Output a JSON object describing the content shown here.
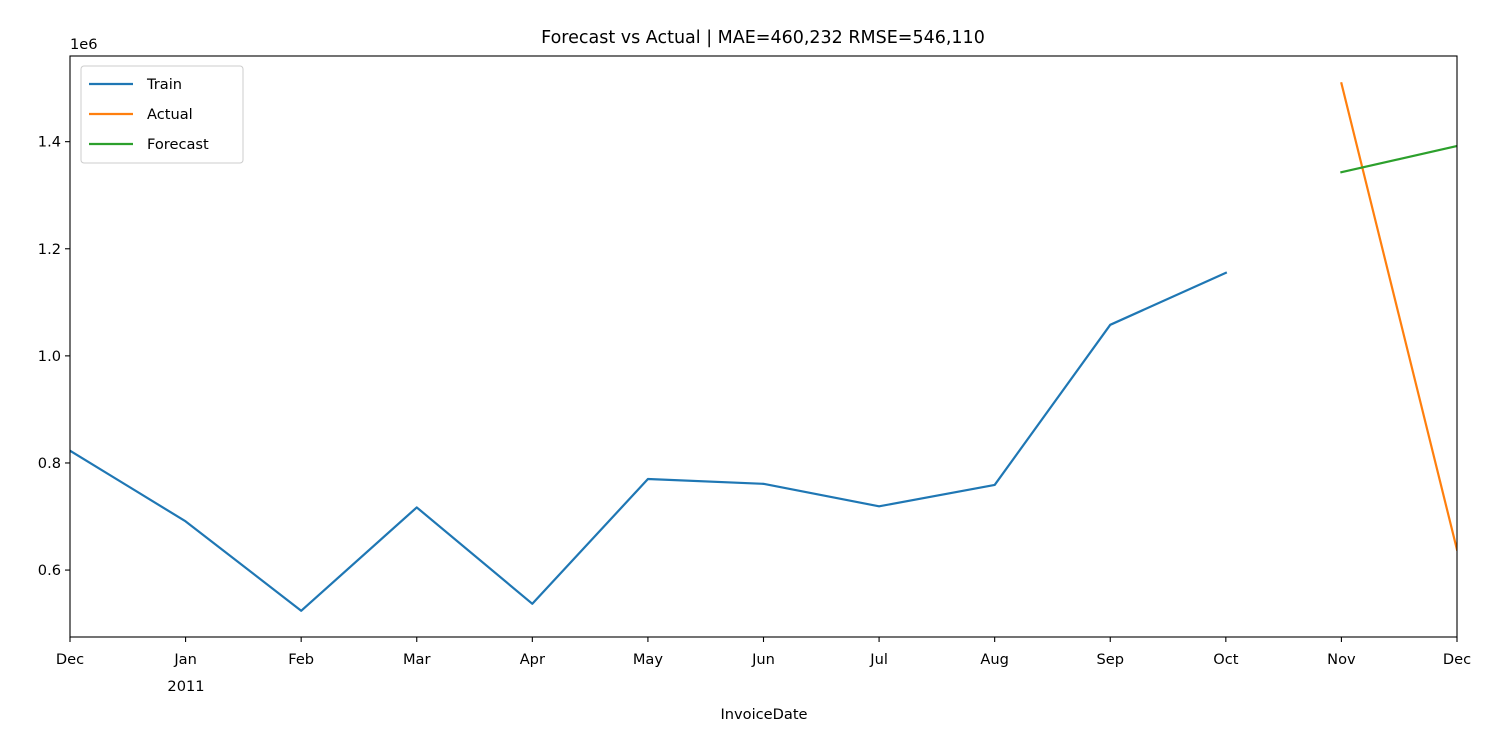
{
  "chart_data": {
    "type": "line",
    "title": "Forecast vs Actual | MAE=460,232 RMSE=546,110",
    "xlabel": "InvoiceDate",
    "ylabel": "",
    "y_offset_label": "1e6",
    "x_categories": [
      "2010-12",
      "2011-01",
      "2011-02",
      "2011-03",
      "2011-04",
      "2011-05",
      "2011-06",
      "2011-07",
      "2011-08",
      "2011-09",
      "2011-10",
      "2011-11",
      "2011-12"
    ],
    "x_tick_labels": [
      "Dec",
      "Jan",
      "Feb",
      "Mar",
      "Apr",
      "May",
      "Jun",
      "Jul",
      "Aug",
      "Sep",
      "Oct",
      "Nov",
      "Dec"
    ],
    "x_year_label": "2011",
    "ylim": [
      0.475,
      1.56
    ],
    "y_ticks": [
      0.6,
      0.8,
      1.0,
      1.2,
      1.4
    ],
    "y_tick_labels": [
      "0.6",
      "0.8",
      "1.0",
      "1.2",
      "1.4"
    ],
    "legend_position": "upper-left",
    "grid": false,
    "series": [
      {
        "name": "Train",
        "color": "#1f77b4",
        "x": [
          "2010-12",
          "2011-01",
          "2011-02",
          "2011-03",
          "2011-04",
          "2011-05",
          "2011-06",
          "2011-07",
          "2011-08",
          "2011-09",
          "2011-10"
        ],
        "values": [
          0.823,
          0.691,
          0.524,
          0.717,
          0.537,
          0.77,
          0.761,
          0.719,
          0.759,
          1.058,
          1.155
        ]
      },
      {
        "name": "Actual",
        "color": "#ff7f0e",
        "x": [
          "2011-11",
          "2011-12"
        ],
        "values": [
          1.509,
          0.638
        ]
      },
      {
        "name": "Forecast",
        "color": "#2ca02c",
        "x": [
          "2011-11",
          "2011-12"
        ],
        "values": [
          1.343,
          1.392
        ]
      }
    ]
  }
}
